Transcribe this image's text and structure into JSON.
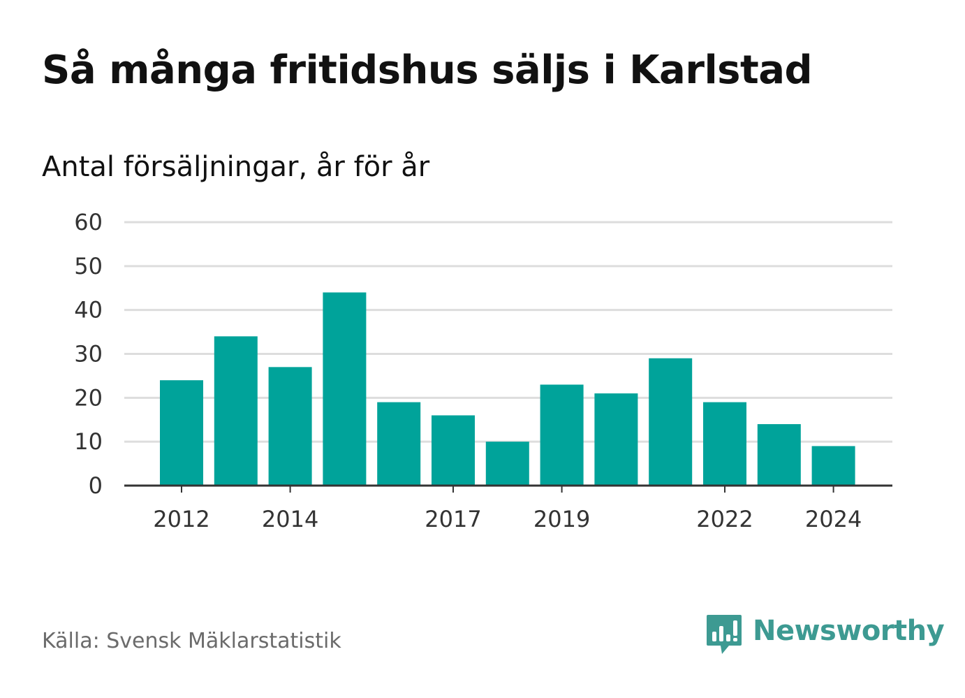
{
  "title": "Så många fritidshus säljs i Karlstad",
  "subtitle": "Antal försäljningar, år för år",
  "source": "Källa: Svensk Mäklarstatistik",
  "logo": {
    "text": "Newsworthy",
    "icon": "newsworthy-chart-bubble-icon",
    "color": "#3d9a92"
  },
  "colors": {
    "bar": "#00a39a",
    "grid": "#dddddd",
    "axis": "#333333"
  },
  "chart_data": {
    "type": "bar",
    "title": "Så många fritidshus säljs i Karlstad",
    "subtitle": "Antal försäljningar, år för år",
    "categories": [
      2012,
      2013,
      2014,
      2015,
      2016,
      2017,
      2018,
      2019,
      2020,
      2021,
      2022,
      2023,
      2024
    ],
    "values": [
      24,
      34,
      27,
      44,
      19,
      16,
      10,
      23,
      21,
      29,
      19,
      14,
      9
    ],
    "x_tick_labels": [
      "2012",
      "2014",
      "2017",
      "2019",
      "2022",
      "2024"
    ],
    "y_ticks": [
      0,
      10,
      20,
      30,
      40,
      50,
      60
    ],
    "ylim": [
      0,
      60
    ],
    "xlabel": "",
    "ylabel": "",
    "grid": true,
    "legend": "none"
  }
}
